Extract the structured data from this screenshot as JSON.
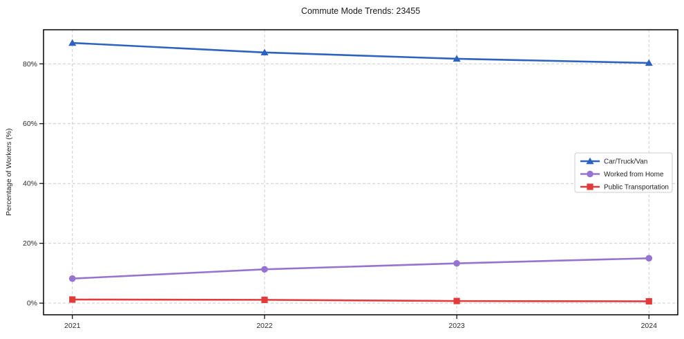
{
  "chart_data": {
    "type": "line",
    "title": "Commute Mode Trends: 23455",
    "xlabel": "",
    "ylabel": "Percentage of Workers (%)",
    "x": [
      2021,
      2022,
      2023,
      2024
    ],
    "xtick_labels": [
      "2021",
      "2022",
      "2023",
      "2024"
    ],
    "yticks": [
      0,
      20,
      40,
      60,
      80
    ],
    "ytick_labels": [
      "0%",
      "20%",
      "40%",
      "60%",
      "80%"
    ],
    "xlim": [
      2020.85,
      2024.15
    ],
    "ylim": [
      -3.9,
      91.4
    ],
    "grid": true,
    "grid_style": "dashed",
    "legend_position": "center right",
    "series": [
      {
        "name": "Car/Truck/Van",
        "marker": "triangle",
        "color": "#2d63c0",
        "values": [
          87.0,
          83.8,
          81.7,
          80.3
        ]
      },
      {
        "name": "Worked from Home",
        "marker": "circle",
        "color": "#9673d1",
        "values": [
          8.2,
          11.3,
          13.3,
          15.0
        ]
      },
      {
        "name": "Public Transportation",
        "marker": "square",
        "color": "#e23b3b",
        "values": [
          1.2,
          1.1,
          0.7,
          0.6
        ]
      }
    ],
    "colors": {
      "frame": "#000000",
      "grid": "#cccccc",
      "tick_text": "#2b2b2b",
      "legend_border": "#cccccc",
      "legend_bg": "#ffffff",
      "background": "#ffffff"
    }
  }
}
